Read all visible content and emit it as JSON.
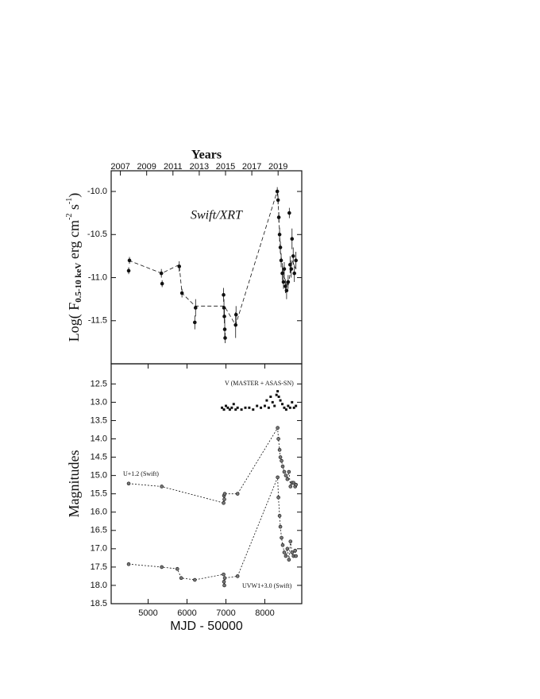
{
  "chart_data": [
    {
      "type": "scatter",
      "x2label": "Years",
      "ylabel": [
        {
          "text": "Log( F",
          "style": "normal"
        },
        {
          "text": "0.5-10 keV",
          "style": "sub"
        },
        {
          "text": " erg cm",
          "style": "normal"
        },
        {
          "text": "-2",
          "style": "sup"
        },
        {
          "text": " s",
          "style": "normal"
        },
        {
          "text": "-1",
          "style": "sup"
        },
        {
          "text": ")",
          "style": "normal"
        }
      ],
      "annotations": [
        "Swift/XRT"
      ],
      "xlim": [
        4050,
        8950
      ],
      "x2lim": [
        2006.3,
        2020.8
      ],
      "x2ticks": [
        2007,
        2009,
        2011,
        2013,
        2015,
        2017,
        2019
      ],
      "ylim": [
        -12.0,
        -9.76
      ],
      "yticks": [
        {
          "value": -11.5,
          "label": "-11.5"
        },
        {
          "value": -11,
          "label": "-11.0"
        },
        {
          "value": -10.5,
          "label": "-10.5"
        },
        {
          "value": -10,
          "label": "-10.0"
        }
      ],
      "series": [
        {
          "color": "#111111",
          "marker": "circle",
          "line": "none",
          "x": [
            4500,
            4520,
            5340,
            5360,
            5800,
            5870,
            6200,
            6220,
            6940,
            6950,
            6960,
            6970,
            6980,
            7250,
            7260,
            8320,
            8340,
            8360,
            8380,
            8400,
            8420,
            8450,
            8480,
            8500,
            8530,
            8560,
            8600,
            8630,
            8650,
            8680,
            8700,
            8730,
            8760,
            8800
          ],
          "values": [
            -10.92,
            -10.8,
            -10.95,
            -11.07,
            -10.87,
            -11.18,
            -11.52,
            -11.35,
            -11.2,
            -11.35,
            -11.45,
            -11.6,
            -11.7,
            -11.55,
            -11.43,
            -10.0,
            -10.1,
            -10.3,
            -10.5,
            -10.65,
            -10.8,
            -10.95,
            -11.05,
            -10.9,
            -11.1,
            -11.15,
            -11.05,
            -10.25,
            -10.85,
            -10.9,
            -10.55,
            -10.75,
            -10.95,
            -10.8
          ],
          "errors": [
            0.04,
            0.04,
            0.05,
            0.04,
            0.06,
            0.05,
            0.08,
            0.1,
            0.08,
            0.1,
            0.08,
            0.12,
            0.06,
            0.15,
            0.1,
            0.05,
            0.05,
            0.06,
            0.08,
            0.07,
            0.08,
            0.08,
            0.08,
            0.08,
            0.08,
            0.1,
            0.08,
            0.06,
            0.1,
            0.1,
            0.12,
            0.1,
            0.1,
            0.1
          ]
        },
        {
          "color": "#111111",
          "marker": "none",
          "line": "dashed",
          "x": [
            4500,
            5350,
            5800,
            5870,
            6210,
            6960,
            7250,
            8330,
            8400,
            8500,
            8600,
            8700,
            8800
          ],
          "values": [
            -10.8,
            -10.95,
            -10.85,
            -11.18,
            -11.33,
            -11.33,
            -11.55,
            -9.98,
            -10.7,
            -11.0,
            -11.1,
            -10.8,
            -10.9
          ]
        }
      ]
    },
    {
      "type": "scatter",
      "xlabel": "MJD - 50000",
      "ylabel": "Magnitudes",
      "annotations": [
        "V (MASTER + ASAS-SN)",
        "U+1.2 (Swift)",
        "UVW1+3.0 (Swift)"
      ],
      "xlim": [
        4050,
        8950
      ],
      "xticks": [
        5000,
        6000,
        7000,
        8000
      ],
      "ylim": [
        11.95,
        18.5
      ],
      "y_inverted": true,
      "yticks": [
        12.5,
        {
          "value": 13,
          "label": "13.0"
        },
        13.5,
        {
          "value": 14,
          "label": "14.0"
        },
        14.5,
        {
          "value": 15,
          "label": "15.0"
        },
        15.5,
        {
          "value": 16,
          "label": "16.0"
        },
        16.5,
        {
          "value": 17,
          "label": "17.0"
        },
        17.5,
        {
          "value": 18,
          "label": "18.0"
        },
        18.5
      ],
      "series": [
        {
          "color": "#111111",
          "marker": "square",
          "line": "none",
          "x": [
            6900,
            6950,
            7000,
            7050,
            7100,
            7150,
            7200,
            7250,
            7300,
            7400,
            7500,
            7600,
            7700,
            7800,
            7900,
            8000,
            8050,
            8100,
            8150,
            8200,
            8250,
            8300,
            8330,
            8360,
            8400,
            8450,
            8500,
            8550,
            8600,
            8650,
            8700,
            8750,
            8800
          ],
          "values": [
            13.15,
            13.2,
            13.1,
            13.15,
            13.2,
            13.15,
            13.05,
            13.2,
            13.15,
            13.2,
            13.15,
            13.15,
            13.2,
            13.1,
            13.15,
            13.1,
            12.95,
            13.15,
            12.85,
            13.0,
            13.1,
            12.8,
            12.7,
            12.85,
            12.95,
            13.05,
            13.15,
            13.2,
            13.1,
            13.15,
            13.0,
            13.15,
            13.1
          ]
        },
        {
          "color": "#777777",
          "marker": "circle",
          "line": "dotted",
          "x": [
            4500,
            5350,
            6940,
            6950,
            6960,
            6970,
            7300,
            8330,
            8350,
            8380,
            8400,
            8430,
            8460,
            8500,
            8540,
            8580,
            8620,
            8660,
            8700,
            8740,
            8780,
            8800
          ],
          "values": [
            15.22,
            15.3,
            15.75,
            15.55,
            15.65,
            15.5,
            15.5,
            13.7,
            14.0,
            14.3,
            14.5,
            14.6,
            14.75,
            14.9,
            15.0,
            15.1,
            14.9,
            15.3,
            15.2,
            15.2,
            15.3,
            15.25
          ]
        },
        {
          "color": "#777777",
          "marker": "circle",
          "line": "dotted",
          "x": [
            4500,
            5350,
            5750,
            5850,
            6200,
            6940,
            6950,
            6960,
            6970,
            7300,
            8330,
            8350,
            8380,
            8400,
            8430,
            8460,
            8500,
            8540,
            8580,
            8620,
            8660,
            8700,
            8740,
            8780,
            8800
          ],
          "values": [
            17.42,
            17.5,
            17.55,
            17.8,
            17.85,
            17.7,
            17.9,
            18.0,
            17.8,
            17.75,
            15.05,
            15.6,
            16.1,
            16.4,
            16.7,
            16.9,
            17.1,
            17.2,
            17.0,
            17.3,
            16.8,
            17.1,
            17.2,
            17.05,
            17.2
          ]
        }
      ]
    }
  ]
}
